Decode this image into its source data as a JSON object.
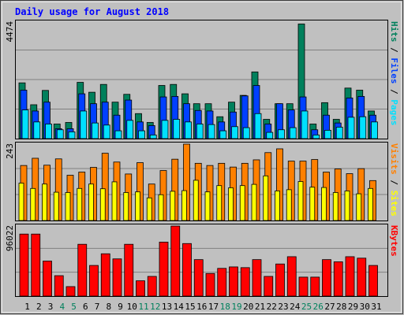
{
  "chart_data": {
    "type": "bar",
    "title": "Daily usage for August 2018",
    "colors": {
      "background": "#c0c0c0",
      "title": "#0000ff",
      "hits": "#00805c",
      "files": "#0040ff",
      "pages": "#00e0ff",
      "visits": "#ff8000",
      "sites": "#ffff00",
      "kbytes": "#ff0000",
      "weekend_day": "#00805c"
    },
    "days": [
      "1",
      "2",
      "3",
      "4",
      "5",
      "6",
      "7",
      "8",
      "9",
      "10",
      "11",
      "12",
      "13",
      "14",
      "15",
      "16",
      "17",
      "18",
      "19",
      "20",
      "21",
      "22",
      "23",
      "24",
      "25",
      "26",
      "27",
      "28",
      "29",
      "30",
      "31"
    ],
    "weekend_days": [
      "4",
      "5",
      "11",
      "12",
      "18",
      "19",
      "25",
      "26"
    ],
    "panels": {
      "top": {
        "max_label": "4474",
        "ylim": [
          0,
          4474
        ],
        "legend": {
          "pages": "Pages",
          "files": "Files",
          "hits": "Hits",
          "sep": " / "
        },
        "hits": [
          2140,
          1300,
          1850,
          560,
          620,
          2160,
          1780,
          2080,
          1400,
          1700,
          960,
          620,
          2040,
          2080,
          1720,
          1340,
          1340,
          840,
          1400,
          1660,
          2560,
          740,
          1340,
          1340,
          4400,
          560,
          1380,
          740,
          1940,
          1860,
          1060
        ],
        "files": [
          1860,
          1060,
          1400,
          380,
          380,
          1720,
          1340,
          1400,
          900,
          1480,
          640,
          500,
          1600,
          1620,
          1340,
          1080,
          1060,
          640,
          1020,
          1640,
          2040,
          560,
          1340,
          1100,
          1600,
          340,
          900,
          600,
          1560,
          1620,
          900
        ],
        "pages": [
          1100,
          640,
          560,
          340,
          260,
          1060,
          600,
          520,
          300,
          700,
          300,
          140,
          700,
          740,
          640,
          560,
          540,
          300,
          460,
          420,
          960,
          240,
          340,
          420,
          1060,
          140,
          320,
          440,
          820,
          840,
          640
        ]
      },
      "middle": {
        "max_label": "243",
        "ylim": [
          0,
          243
        ],
        "legend": {
          "sites": "Sites",
          "visits": "Visits",
          "sep": " / "
        },
        "visits": [
          175,
          198,
          176,
          196,
          144,
          154,
          169,
          214,
          186,
          148,
          184,
          116,
          159,
          195,
          243,
          182,
          175,
          182,
          170,
          182,
          193,
          216,
          228,
          189,
          189,
          194,
          154,
          164,
          149,
          165,
          127
        ],
        "sites": [
          119,
          102,
          116,
          90,
          89,
          102,
          116,
          101,
          123,
          89,
          91,
          72,
          82,
          93,
          95,
          128,
          91,
          111,
          104,
          111,
          115,
          142,
          94,
          98,
          124,
          106,
          105,
          89,
          94,
          85,
          102
        ]
      },
      "bottom": {
        "max_label": "96022",
        "ylim": [
          0,
          96022
        ],
        "legend": {
          "kbytes": "KBytes"
        },
        "kbytes": [
          85000,
          85000,
          48000,
          28000,
          13000,
          71000,
          42000,
          58000,
          51000,
          71000,
          21000,
          27000,
          74000,
          96000,
          72000,
          50000,
          31000,
          38000,
          40000,
          39000,
          50000,
          27000,
          44000,
          54000,
          26000,
          26000,
          50000,
          47000,
          54000,
          52000,
          42000
        ]
      }
    }
  }
}
